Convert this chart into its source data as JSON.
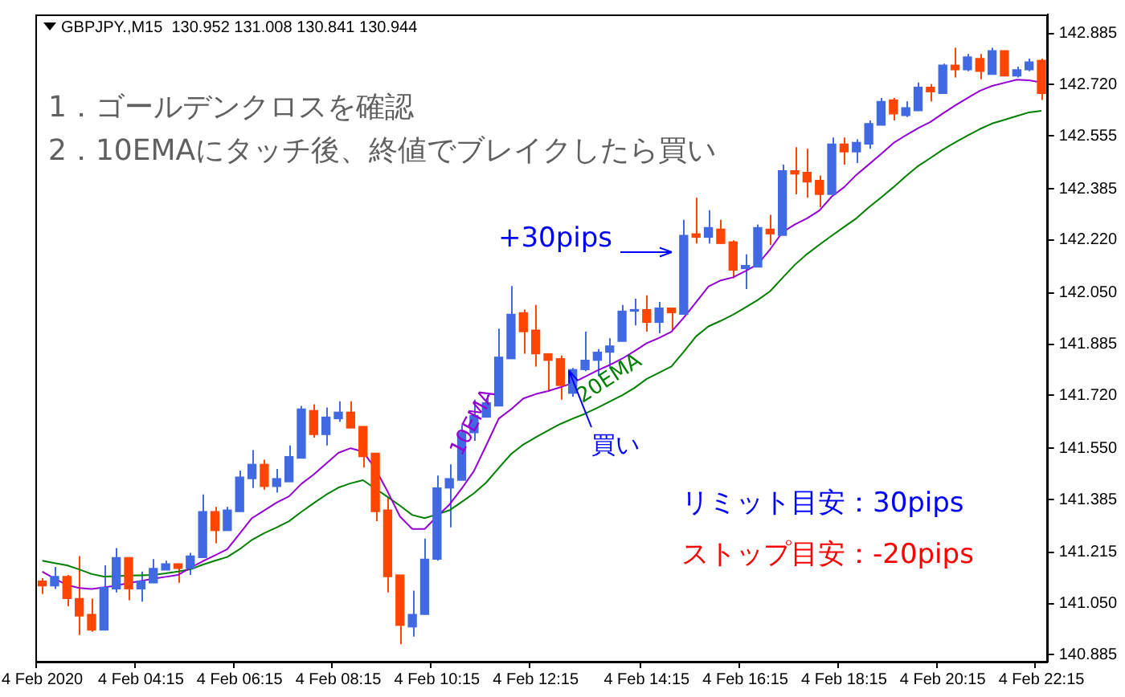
{
  "chart_data": {
    "type": "candlestick",
    "annotations": [
      "GBPJPY.,M15  130.952 131.008 130.841 130.944",
      "1．ゴールデンクロスを確認",
      "2．10EMAにタッチ後、終値でブレイクしたら買い",
      "+30pips",
      {
        "text": "買い",
        "y": 141.8
      },
      "リミット目安：30pips",
      "ストップ目安：-20pips"
    ],
    "categories": [
      "4 Feb 2020",
      null,
      null,
      null,
      null,
      null,
      null,
      null,
      "4 Feb 04:15",
      null,
      null,
      null,
      null,
      null,
      null,
      null,
      "4 Feb 06:15",
      null,
      null,
      null,
      null,
      null,
      null,
      null,
      "4 Feb 08:15",
      null,
      null,
      null,
      null,
      null,
      null,
      null,
      "4 Feb 10:15",
      null,
      null,
      null,
      null,
      null,
      null,
      null,
      "4 Feb 12:15",
      null,
      null,
      null,
      null,
      null,
      null,
      null,
      null,
      "4 Feb 14:15",
      null,
      null,
      null,
      null,
      null,
      null,
      null,
      "4 Feb 16:15",
      null,
      null,
      null,
      null,
      null,
      null,
      null,
      "4 Feb 18:15",
      null,
      null,
      null,
      null,
      null,
      null,
      null,
      "4 Feb 20:15",
      null,
      null,
      null,
      null,
      null,
      null,
      null,
      "4 Feb 22:15"
    ],
    "ohlc": [
      [
        141.122,
        141.132,
        141.081,
        141.107
      ],
      [
        141.107,
        141.168,
        141.097,
        141.137
      ],
      [
        141.137,
        141.142,
        141.041,
        141.066
      ],
      [
        141.066,
        141.203,
        140.949,
        141.01
      ],
      [
        141.015,
        141.066,
        140.959,
        140.965
      ],
      [
        140.965,
        141.173,
        140.965,
        141.102
      ],
      [
        141.097,
        141.229,
        141.086,
        141.198
      ],
      [
        141.198,
        141.198,
        141.061,
        141.097
      ],
      [
        141.097,
        141.153,
        141.056,
        141.122
      ],
      [
        141.117,
        141.193,
        141.117,
        141.163
      ],
      [
        141.158,
        141.188,
        141.158,
        141.178
      ],
      [
        141.178,
        141.178,
        141.117,
        141.163
      ],
      [
        141.163,
        141.213,
        141.142,
        141.203
      ],
      [
        141.198,
        141.401,
        141.198,
        141.346
      ],
      [
        141.346,
        141.361,
        141.244,
        141.285
      ],
      [
        141.285,
        141.361,
        141.285,
        141.351
      ],
      [
        141.346,
        141.478,
        141.346,
        141.457
      ],
      [
        141.452,
        141.544,
        141.422,
        141.498
      ],
      [
        141.498,
        141.513,
        141.417,
        141.427
      ],
      [
        141.427,
        141.483,
        141.407,
        141.452
      ],
      [
        141.442,
        141.559,
        141.442,
        141.523
      ],
      [
        141.518,
        141.686,
        141.518,
        141.676
      ],
      [
        141.671,
        141.691,
        141.584,
        141.594
      ],
      [
        141.594,
        141.681,
        141.559,
        141.65
      ],
      [
        141.645,
        141.701,
        141.635,
        141.666
      ],
      [
        141.666,
        141.701,
        141.615,
        141.615
      ],
      [
        141.62,
        141.62,
        141.488,
        141.523
      ],
      [
        141.534,
        141.534,
        141.315,
        141.346
      ],
      [
        141.351,
        141.391,
        141.086,
        141.137
      ],
      [
        141.142,
        141.142,
        140.919,
        140.98
      ],
      [
        140.975,
        141.092,
        140.944,
        141.015
      ],
      [
        141.015,
        141.259,
        141.015,
        141.193
      ],
      [
        141.193,
        141.462,
        141.188,
        141.422
      ],
      [
        141.422,
        141.498,
        141.295,
        141.452
      ],
      [
        141.447,
        141.625,
        141.447,
        141.6
      ],
      [
        141.6,
        141.706,
        141.574,
        141.655
      ],
      [
        141.65,
        141.721,
        141.65,
        141.696
      ],
      [
        141.686,
        141.935,
        141.686,
        141.843
      ],
      [
        141.838,
        142.072,
        141.838,
        141.981
      ],
      [
        141.986,
        141.996,
        141.854,
        141.925
      ],
      [
        141.93,
        142.011,
        141.813,
        141.854
      ],
      [
        141.854,
        141.854,
        141.732,
        141.833
      ],
      [
        141.838,
        141.848,
        141.706,
        141.752
      ],
      [
        141.727,
        141.808,
        141.716,
        141.803
      ],
      [
        141.803,
        141.925,
        141.798,
        141.833
      ],
      [
        141.833,
        141.869,
        141.782,
        141.859
      ],
      [
        141.859,
        141.904,
        141.808,
        141.879
      ],
      [
        141.894,
        142.011,
        141.894,
        141.991
      ],
      [
        141.991,
        142.031,
        141.945,
        141.996
      ],
      [
        141.996,
        142.042,
        141.925,
        141.955
      ],
      [
        141.955,
        142.021,
        141.92,
        142.001
      ],
      [
        142.001,
        142.001,
        141.93,
        141.986
      ],
      [
        141.981,
        142.285,
        141.981,
        142.235
      ],
      [
        142.24,
        142.356,
        142.209,
        142.229
      ],
      [
        142.229,
        142.316,
        142.209,
        142.26
      ],
      [
        142.255,
        142.285,
        142.209,
        142.209
      ],
      [
        142.214,
        142.219,
        142.097,
        142.123
      ],
      [
        142.128,
        142.174,
        142.062,
        142.138
      ],
      [
        142.133,
        142.27,
        142.133,
        142.26
      ],
      [
        142.255,
        142.301,
        142.204,
        142.24
      ],
      [
        142.235,
        142.463,
        142.235,
        142.443
      ],
      [
        142.443,
        142.519,
        142.367,
        142.433
      ],
      [
        142.438,
        142.514,
        142.356,
        142.407
      ],
      [
        142.412,
        142.428,
        142.326,
        142.367
      ],
      [
        142.367,
        142.55,
        142.367,
        142.529
      ],
      [
        142.529,
        142.55,
        142.463,
        142.504
      ],
      [
        142.504,
        142.544,
        142.468,
        142.534
      ],
      [
        142.529,
        142.605,
        142.514,
        142.595
      ],
      [
        142.59,
        142.677,
        142.59,
        142.666
      ],
      [
        142.671,
        142.677,
        142.605,
        142.626
      ],
      [
        142.621,
        142.666,
        142.616,
        142.646
      ],
      [
        142.636,
        142.727,
        142.636,
        142.712
      ],
      [
        142.712,
        142.722,
        142.666,
        142.697
      ],
      [
        142.692,
        142.788,
        142.692,
        142.783
      ],
      [
        142.783,
        142.839,
        142.743,
        142.768
      ],
      [
        142.768,
        142.819,
        142.763,
        142.809
      ],
      [
        142.804,
        142.819,
        142.737,
        142.763
      ],
      [
        142.753,
        142.839,
        142.753,
        142.829
      ],
      [
        142.829,
        142.829,
        142.748,
        142.748
      ],
      [
        142.748,
        142.778,
        142.743,
        142.768
      ],
      [
        142.768,
        142.804,
        142.763,
        142.793
      ],
      [
        142.798,
        142.804,
        142.671,
        142.692
      ]
    ],
    "colors": [
      "#ff4500",
      "#4169e1",
      "#ff4500",
      "#ff4500",
      "#ff4500",
      "#4169e1",
      "#4169e1",
      "#ff4500",
      "#4169e1",
      "#4169e1",
      "#4169e1",
      "#ff4500",
      "#4169e1",
      "#4169e1",
      "#ff4500",
      "#4169e1",
      "#4169e1",
      "#4169e1",
      "#ff4500",
      "#4169e1",
      "#4169e1",
      "#4169e1",
      "#ff4500",
      "#4169e1",
      "#4169e1",
      "#ff4500",
      "#ff4500",
      "#ff4500",
      "#ff4500",
      "#ff4500",
      "#4169e1",
      "#4169e1",
      "#4169e1",
      "#4169e1",
      "#4169e1",
      "#4169e1",
      "#4169e1",
      "#4169e1",
      "#4169e1",
      "#ff4500",
      "#ff4500",
      "#ff4500",
      "#ff4500",
      "#4169e1",
      "#4169e1",
      "#4169e1",
      "#4169e1",
      "#4169e1",
      "#4169e1",
      "#ff4500",
      "#4169e1",
      "#ff4500",
      "#4169e1",
      "#ff4500",
      "#4169e1",
      "#ff4500",
      "#ff4500",
      "#4169e1",
      "#4169e1",
      "#ff4500",
      "#4169e1",
      "#ff4500",
      "#ff4500",
      "#ff4500",
      "#4169e1",
      "#ff4500",
      "#4169e1",
      "#4169e1",
      "#4169e1",
      "#ff4500",
      "#4169e1",
      "#4169e1",
      "#ff4500",
      "#4169e1",
      "#ff4500",
      "#4169e1",
      "#ff4500",
      "#4169e1",
      "#ff4500",
      "#4169e1",
      "#4169e1",
      "#ff4500"
    ],
    "series": [
      {
        "name": "10EMA",
        "type": "line",
        "color": "#9400d3",
        "values": [
          141.153,
          141.13,
          141.11,
          141.1,
          141.097,
          141.102,
          141.108,
          141.116,
          141.123,
          141.13,
          141.136,
          141.142,
          141.165,
          141.186,
          141.205,
          141.225,
          141.275,
          141.325,
          141.35,
          141.375,
          141.395,
          141.435,
          141.465,
          141.5,
          141.535,
          141.55,
          141.539,
          141.484,
          141.41,
          141.33,
          141.29,
          141.29,
          141.33,
          141.368,
          141.42,
          141.477,
          141.56,
          141.645,
          141.675,
          141.71,
          141.724,
          141.734,
          141.746,
          141.76,
          141.78,
          141.8,
          141.818,
          141.838,
          141.862,
          141.888,
          141.905,
          141.925,
          141.97,
          142.02,
          142.07,
          142.09,
          142.1,
          142.12,
          142.142,
          142.19,
          142.245,
          142.27,
          142.29,
          142.315,
          142.36,
          142.39,
          142.43,
          142.463,
          142.497,
          142.532,
          142.557,
          142.58,
          142.6,
          142.627,
          142.653,
          142.677,
          142.7,
          142.716,
          142.726,
          142.736,
          142.734,
          142.727
        ]
      },
      {
        "name": "20EMA",
        "type": "line",
        "color": "#008000",
        "values": [
          141.188,
          141.18,
          141.173,
          141.16,
          141.145,
          141.137,
          141.138,
          141.14,
          141.141,
          141.142,
          141.147,
          141.153,
          141.16,
          141.175,
          141.188,
          141.2,
          141.225,
          141.255,
          141.277,
          141.295,
          141.315,
          141.345,
          141.373,
          141.4,
          141.423,
          141.437,
          141.447,
          141.42,
          141.393,
          141.365,
          141.335,
          141.325,
          141.337,
          141.35,
          141.377,
          141.405,
          141.44,
          141.486,
          141.531,
          141.562,
          141.585,
          141.607,
          141.628,
          141.645,
          141.661,
          141.68,
          141.7,
          141.72,
          141.744,
          141.773,
          141.793,
          141.813,
          141.86,
          141.91,
          141.942,
          141.96,
          141.98,
          142.003,
          142.027,
          142.055,
          142.098,
          142.14,
          142.175,
          142.205,
          142.234,
          142.262,
          142.29,
          142.325,
          142.357,
          142.39,
          142.425,
          142.458,
          142.484,
          142.511,
          142.534,
          142.556,
          142.577,
          142.595,
          142.607,
          142.619,
          142.631,
          142.636
        ]
      }
    ],
    "ylim": [
      140.863,
      142.946
    ],
    "yticks": [
      140.885,
      {
        "value": 141.05,
        "label": "141.050"
      },
      141.215,
      141.385,
      {
        "value": 141.55,
        "label": "141.550"
      },
      {
        "value": 141.72,
        "label": "141.720"
      },
      141.885,
      {
        "value": 142.05,
        "label": "142.050"
      },
      {
        "value": 142.22,
        "label": "142.220"
      },
      142.385,
      142.555,
      {
        "value": 142.72,
        "label": "142.720"
      },
      142.885
    ],
    "grid": false,
    "legend": false,
    "marker": "none"
  }
}
